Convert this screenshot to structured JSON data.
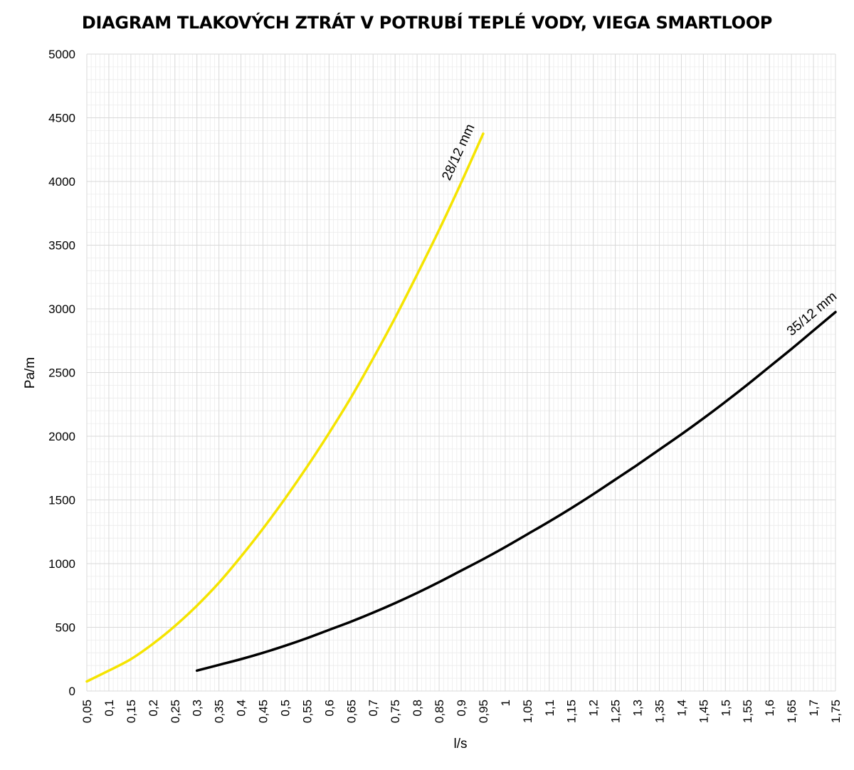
{
  "chart_data": {
    "type": "line",
    "title": "DIAGRAM TLAKOVÝCH ZTRÁT V POTRUBÍ TEPLÉ VODY, VIEGA SMARTLOOP",
    "xlabel": "l/s",
    "ylabel": "Pa/m",
    "xlim": [
      0.05,
      1.75
    ],
    "ylim": [
      0,
      5000
    ],
    "grid": true,
    "x_tick_labels": [
      "0,05",
      "0,1",
      "0,15",
      "0,2",
      "0,25",
      "0,3",
      "0,35",
      "0,4",
      "0,45",
      "0,5",
      "0,55",
      "0,6",
      "0,65",
      "0,7",
      "0,75",
      "0,8",
      "0,85",
      "0,9",
      "0,95",
      "1",
      "1,05",
      "1,1",
      "1,15",
      "1,2",
      "1,25",
      "1,3",
      "1,35",
      "1,4",
      "1,45",
      "1,5",
      "1,55",
      "1,6",
      "1,65",
      "1,7",
      "1,75"
    ],
    "y_tick_labels": [
      "0",
      "500",
      "1000",
      "1500",
      "2000",
      "2500",
      "3000",
      "3500",
      "4000",
      "4500",
      "5000"
    ],
    "series": [
      {
        "name": "28/12 mm",
        "color": "#f5e400",
        "x": [
          0.05,
          0.1,
          0.15,
          0.2,
          0.25,
          0.3,
          0.35,
          0.4,
          0.45,
          0.5,
          0.55,
          0.6,
          0.65,
          0.7,
          0.75,
          0.8,
          0.85,
          0.9,
          0.95
        ],
        "y": [
          75,
          160,
          250,
          370,
          510,
          670,
          850,
          1055,
          1275,
          1510,
          1760,
          2025,
          2305,
          2610,
          2930,
          3270,
          3620,
          3990,
          4375
        ]
      },
      {
        "name": "35/12 mm",
        "color": "#000000",
        "x": [
          0.3,
          0.35,
          0.4,
          0.45,
          0.5,
          0.55,
          0.6,
          0.65,
          0.7,
          0.75,
          0.8,
          0.85,
          0.9,
          0.95,
          1.0,
          1.05,
          1.1,
          1.15,
          1.2,
          1.25,
          1.3,
          1.35,
          1.4,
          1.45,
          1.5,
          1.55,
          1.6,
          1.65,
          1.7,
          1.75
        ],
        "y": [
          160,
          205,
          250,
          300,
          355,
          415,
          480,
          545,
          615,
          690,
          770,
          855,
          945,
          1035,
          1130,
          1230,
          1330,
          1435,
          1545,
          1660,
          1775,
          1895,
          2015,
          2140,
          2270,
          2405,
          2545,
          2685,
          2830,
          2975
        ]
      }
    ]
  }
}
